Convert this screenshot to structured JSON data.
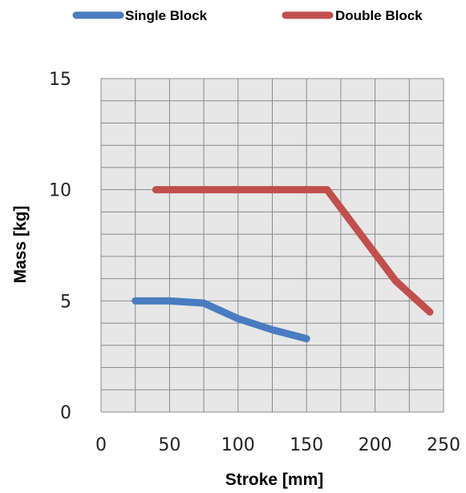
{
  "chart_data": {
    "type": "line",
    "title": "",
    "xlabel": "Stroke [mm]",
    "ylabel": "Mass [kg]",
    "xlim": [
      0,
      250
    ],
    "ylim": [
      0,
      15
    ],
    "x_ticks": [
      "0",
      "50",
      "100",
      "150",
      "200",
      "250"
    ],
    "y_ticks": [
      "0",
      "5",
      "10",
      "15"
    ],
    "grid": true,
    "legend_position": "top",
    "series": [
      {
        "name": "Single Block",
        "color": "#4a7cc0",
        "x": [
          25,
          50,
          75,
          100,
          125,
          150
        ],
        "y": [
          5.0,
          5.0,
          4.9,
          4.2,
          3.7,
          3.3
        ]
      },
      {
        "name": "Double Block",
        "color": "#c0504d",
        "x": [
          40,
          165,
          215,
          240
        ],
        "y": [
          10.0,
          10.0,
          5.9,
          4.5
        ]
      }
    ]
  }
}
